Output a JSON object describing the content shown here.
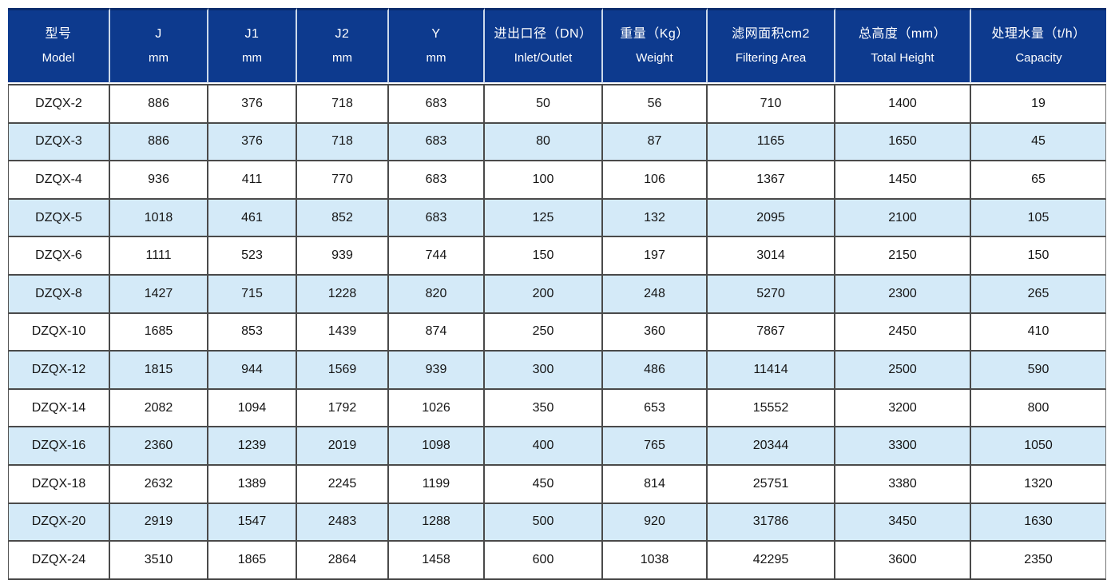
{
  "colors": {
    "header_bg": "#0d3a8e",
    "header_text": "#ffffff",
    "header_divider": "#ccd9ea",
    "header_top_edge": "#0a2c6d",
    "row_bg": "#ffffff",
    "row_alt_bg": "#d4eaf8",
    "grid_border": "#4a4a4a",
    "cell_text": "#151515"
  },
  "chart_data": {
    "type": "table",
    "columns": [
      {
        "zh": "型号",
        "en": "Model"
      },
      {
        "zh": "J",
        "en": "mm"
      },
      {
        "zh": "J1",
        "en": "mm"
      },
      {
        "zh": "J2",
        "en": "mm"
      },
      {
        "zh": "Y",
        "en": "mm"
      },
      {
        "zh": "进出口径（DN）",
        "en": "Inlet/Outlet"
      },
      {
        "zh": "重量（Kg）",
        "en": "Weight"
      },
      {
        "zh": "滤网面积cm2",
        "en": "Filtering Area"
      },
      {
        "zh": "总高度（mm）",
        "en": "Total Height"
      },
      {
        "zh": "处理水量（t/h）",
        "en": "Capacity"
      }
    ],
    "rows": [
      [
        "DZQX-2",
        "886",
        "376",
        "718",
        "683",
        "50",
        "56",
        "710",
        "1400",
        "19"
      ],
      [
        "DZQX-3",
        "886",
        "376",
        "718",
        "683",
        "80",
        "87",
        "1165",
        "1650",
        "45"
      ],
      [
        "DZQX-4",
        "936",
        "411",
        "770",
        "683",
        "100",
        "106",
        "1367",
        "1450",
        "65"
      ],
      [
        "DZQX-5",
        "1018",
        "461",
        "852",
        "683",
        "125",
        "132",
        "2095",
        "2100",
        "105"
      ],
      [
        "DZQX-6",
        "1111",
        "523",
        "939",
        "744",
        "150",
        "197",
        "3014",
        "2150",
        "150"
      ],
      [
        "DZQX-8",
        "1427",
        "715",
        "1228",
        "820",
        "200",
        "248",
        "5270",
        "2300",
        "265"
      ],
      [
        "DZQX-10",
        "1685",
        "853",
        "1439",
        "874",
        "250",
        "360",
        "7867",
        "2450",
        "410"
      ],
      [
        "DZQX-12",
        "1815",
        "944",
        "1569",
        "939",
        "300",
        "486",
        "11414",
        "2500",
        "590"
      ],
      [
        "DZQX-14",
        "2082",
        "1094",
        "1792",
        "1026",
        "350",
        "653",
        "15552",
        "3200",
        "800"
      ],
      [
        "DZQX-16",
        "2360",
        "1239",
        "2019",
        "1098",
        "400",
        "765",
        "20344",
        "3300",
        "1050"
      ],
      [
        "DZQX-18",
        "2632",
        "1389",
        "2245",
        "1199",
        "450",
        "814",
        "25751",
        "3380",
        "1320"
      ],
      [
        "DZQX-20",
        "2919",
        "1547",
        "2483",
        "1288",
        "500",
        "920",
        "31786",
        "3450",
        "1630"
      ],
      [
        "DZQX-24",
        "3510",
        "1865",
        "2864",
        "1458",
        "600",
        "1038",
        "42295",
        "3600",
        "2350"
      ]
    ]
  }
}
